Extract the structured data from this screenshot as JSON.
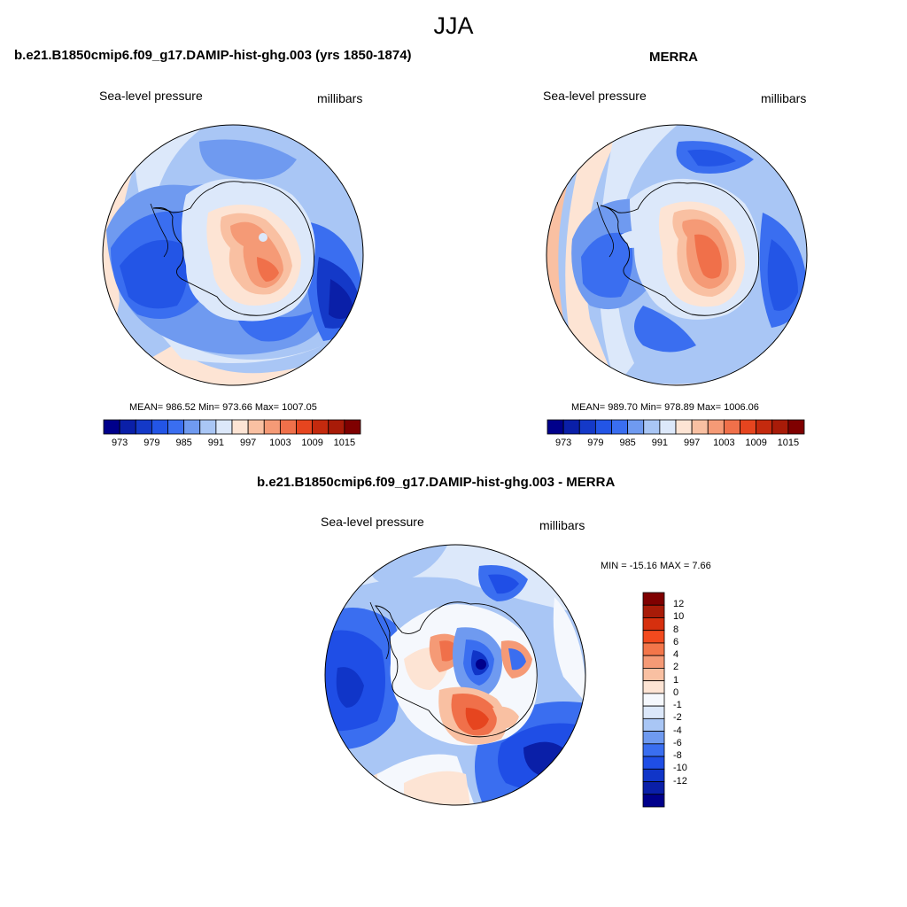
{
  "figure": {
    "title": "JJA",
    "units_label": "millibars",
    "variable_label": "Sea-level pressure"
  },
  "panels": {
    "model": {
      "title": "b.e21.B1850cmip6.f09_g17.DAMIP-hist-ghg.003 (yrs 1850-1874)",
      "stats": "MEAN= 986.52  Min= 973.66  Max= 1007.05",
      "mean": 986.52,
      "min": 973.66,
      "max": 1007.05
    },
    "obs": {
      "title": "MERRA",
      "stats": "MEAN= 989.70  Min= 978.89  Max= 1006.06",
      "mean": 989.7,
      "min": 978.89,
      "max": 1006.06
    },
    "diff": {
      "title": "b.e21.B1850cmip6.f09_g17.DAMIP-hist-ghg.003 - MERRA",
      "stats": "MIN = -15.16 MAX =   7.66",
      "min": -15.16,
      "max": 7.66
    }
  },
  "colorbars": {
    "abs": {
      "colors": [
        "#00008b",
        "#0a1fa8",
        "#1439c8",
        "#2355e6",
        "#3a6ef0",
        "#6f9af0",
        "#a9c6f5",
        "#dce8fa",
        "#fde4d4",
        "#f9c0a2",
        "#f59a76",
        "#f0704a",
        "#e6451f",
        "#c42a0e",
        "#a81b08",
        "#7f0000"
      ],
      "tick_labels": [
        "973",
        "979",
        "985",
        "991",
        "997",
        "1003",
        "1009",
        "1015"
      ]
    },
    "diff": {
      "colors": [
        "#7f0000",
        "#a81b08",
        "#d6300e",
        "#f24a1e",
        "#f3764a",
        "#f59a76",
        "#f9c0a2",
        "#fde4d4",
        "#f5f8fd",
        "#dce8fa",
        "#a9c6f5",
        "#6f9af0",
        "#3a6ef0",
        "#1f4ee6",
        "#1035c8",
        "#0a1fa8",
        "#00008b"
      ],
      "tick_labels": [
        "12",
        "10",
        "8",
        "6",
        "4",
        "2",
        "1",
        "0",
        "-1",
        "-2",
        "-4",
        "-6",
        "-8",
        "-10",
        "-12"
      ]
    }
  }
}
